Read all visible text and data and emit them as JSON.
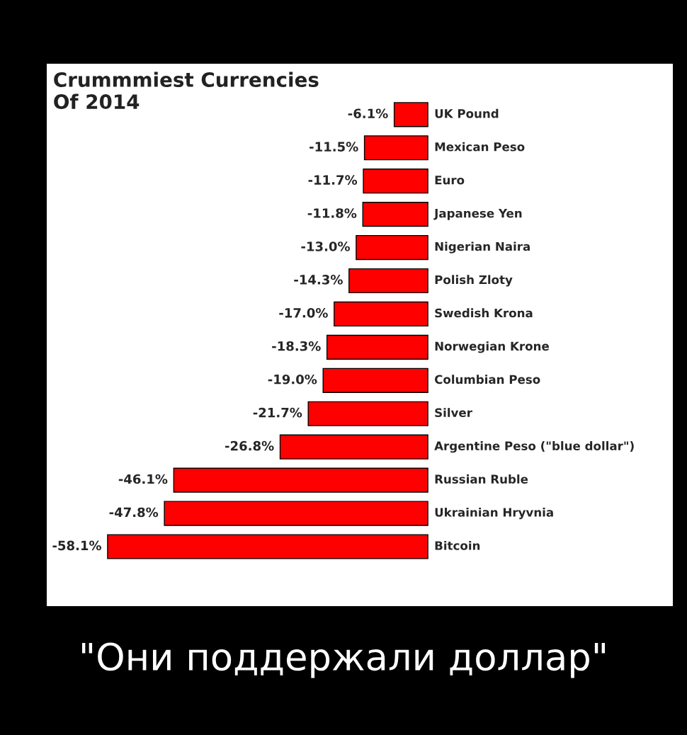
{
  "chart_data": {
    "type": "bar",
    "orientation": "horizontal",
    "title": "Crummmiest Currencies\nOf 2014",
    "categories": [
      "UK Pound",
      "Mexican Peso",
      "Euro",
      "Japanese Yen",
      "Nigerian Naira",
      "Polish Zloty",
      "Swedish Krona",
      "Norwegian Krone",
      "Columbian Peso",
      "Silver",
      "Argentine Peso (\"blue dollar\")",
      "Russian Ruble",
      "Ukrainian Hryvnia",
      "Bitcoin"
    ],
    "values": [
      -6.1,
      -11.5,
      -11.7,
      -11.8,
      -13.0,
      -14.3,
      -17.0,
      -18.3,
      -19.0,
      -21.7,
      -26.8,
      -46.1,
      -47.8,
      -58.1
    ],
    "value_labels": [
      "-6.1%",
      "-11.5%",
      "-11.7%",
      "-11.8%",
      "-13.0%",
      "-14.3%",
      "-17.0%",
      "-18.3%",
      "-19.0%",
      "-21.7%",
      "-26.8%",
      "-46.1%",
      "-47.8%",
      "-58.1%"
    ],
    "color": "#ff0000",
    "annotations": [
      "\"Они поддержали доллар\""
    ]
  }
}
